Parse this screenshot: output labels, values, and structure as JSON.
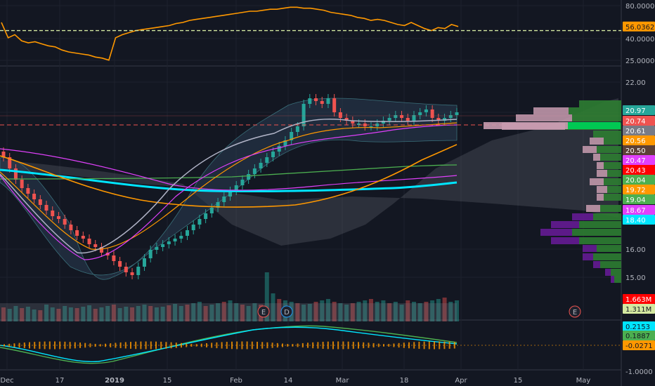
{
  "chart_data": [
    {
      "pane": "rsi",
      "type": "line",
      "series": [
        {
          "values": [
            60,
            45,
            48,
            42,
            40,
            41,
            39,
            37,
            36,
            33,
            31,
            30,
            29,
            28,
            26,
            25,
            23,
            45,
            48,
            50,
            52,
            53,
            54,
            55,
            56,
            57,
            59,
            60,
            62,
            63,
            64,
            65,
            66,
            67,
            68,
            69,
            70,
            71,
            71,
            72,
            73,
            73,
            74,
            75,
            75,
            74,
            74,
            73,
            72,
            70,
            69,
            68,
            67,
            65,
            64,
            62,
            63,
            62,
            60,
            58,
            57,
            60,
            57,
            54,
            52,
            55,
            54,
            58,
            56
          ]
        }
      ],
      "reference_line": 52,
      "y_ticks": [
        "80.0000",
        "40.0000",
        "25.0000"
      ],
      "last_label": "56.0362"
    },
    {
      "pane": "price",
      "type": "candlestick",
      "y_ticks": [
        "22.00",
        "16.00",
        "15.00"
      ],
      "last_price": 20.74,
      "x_ticks": [
        "Dec",
        "17",
        "2019",
        "15",
        "Feb",
        "14",
        "Mar",
        "18",
        "Apr",
        "15",
        "May"
      ],
      "price_labels": [
        {
          "text": "20.97",
          "color": "#26a69a"
        },
        {
          "text": "20.74",
          "color": "#ef5350"
        },
        {
          "text": "20.61",
          "color": "#787b86"
        },
        {
          "text": "20.56",
          "color": "#ff9800"
        },
        {
          "text": "20.50",
          "color": "#5d4037"
        },
        {
          "text": "20.47",
          "color": "#e040fb"
        },
        {
          "text": "20.43",
          "color": "#ff0000"
        },
        {
          "text": "20.04",
          "color": "#4caf50"
        },
        {
          "text": "19.72",
          "color": "#ff9800"
        },
        {
          "text": "19.04",
          "color": "#4caf50"
        },
        {
          "text": "18.67",
          "color": "#e040fb"
        },
        {
          "text": "18.40",
          "color": "#00e5ff"
        }
      ],
      "volume_labels": [
        {
          "text": "1.663M",
          "color": "#ff0000"
        },
        {
          "text": "1.311M",
          "color": "#d4e8a0"
        }
      ],
      "events": [
        "E",
        "D",
        "E"
      ]
    },
    {
      "pane": "macd",
      "type": "line",
      "values_labels": [
        {
          "text": "0.2153",
          "color": "#00e5ff"
        },
        {
          "text": "0.1887",
          "color": "#4caf50"
        },
        {
          "text": "-0.0271",
          "color": "#ff9800"
        }
      ],
      "y_ticks": [
        "-1.0000"
      ]
    }
  ]
}
